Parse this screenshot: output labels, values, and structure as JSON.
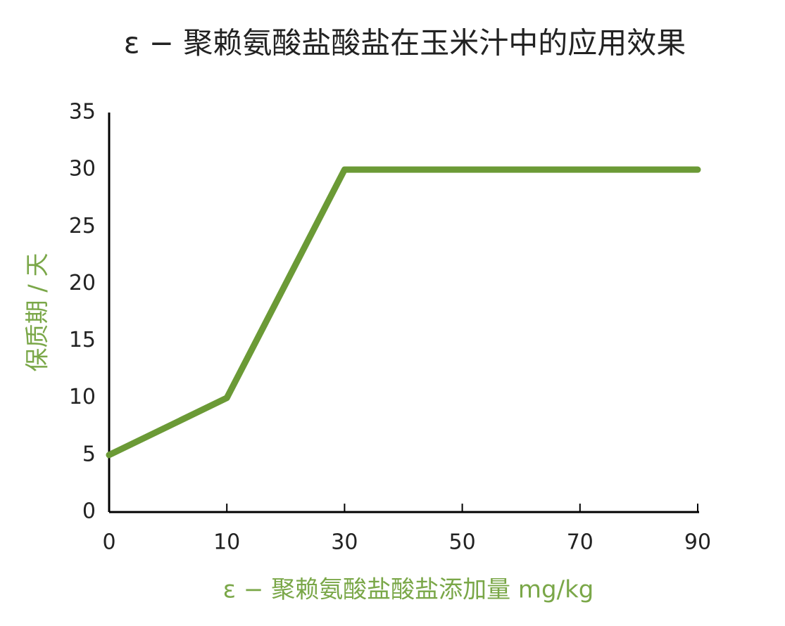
{
  "chart_data": {
    "type": "line",
    "title": "ε − 聚赖氨酸盐酸盐在玉米汁中的应用效果",
    "x_label": "ε − 聚赖氨酸盐酸盐添加量 mg/kg",
    "y_label": "保质期 / 天",
    "categories": [
      "0",
      "10",
      "30",
      "50",
      "70",
      "90"
    ],
    "values": [
      5,
      10,
      30,
      30,
      30,
      30
    ],
    "color": "#6b9a36",
    "label_color": "#7aa748",
    "ylim": [
      0,
      35
    ],
    "yticks": [
      0,
      5,
      10,
      15,
      20,
      25,
      30,
      35
    ],
    "grid": false
  }
}
